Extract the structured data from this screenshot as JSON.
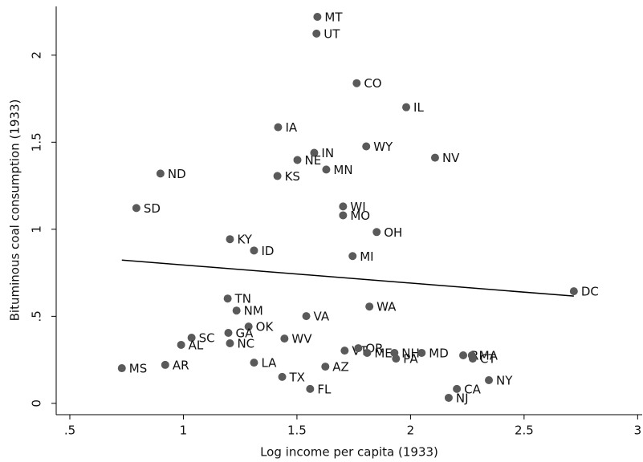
{
  "chart_data": {
    "type": "scatter",
    "x_label": "Log income per capita (1933)",
    "y_label": "Bituminous coal consumption (1933)",
    "color": "#5a5a5a",
    "labels": [
      "MT",
      "UT",
      "CO",
      "IL",
      "IA",
      "WY",
      "NV",
      "IN",
      "NE",
      "MN",
      "KS",
      "ND",
      "SD",
      "WI",
      "MO",
      "OH",
      "KY",
      "ID",
      "MI",
      "DC",
      "TN",
      "NM",
      "WA",
      "VA",
      "OK",
      "GA",
      "WV",
      "SC",
      "NC",
      "AL",
      "VT",
      "OR",
      "ME",
      "NH",
      "MD",
      "PA",
      "RI",
      "MA",
      "CT",
      "NY",
      "CA",
      "NJ",
      "MS",
      "AR",
      "LA",
      "TX",
      "AZ",
      "FL"
    ],
    "x": [
      1.59,
      1.586,
      1.763,
      1.981,
      1.417,
      1.805,
      2.108,
      1.576,
      1.502,
      1.629,
      1.414,
      0.899,
      0.793,
      1.703,
      1.703,
      1.851,
      1.205,
      1.311,
      1.745,
      2.719,
      1.195,
      1.234,
      1.819,
      1.541,
      1.287,
      1.198,
      1.445,
      1.036,
      1.205,
      0.99,
      1.71,
      1.77,
      1.809,
      1.929,
      2.049,
      1.936,
      2.232,
      2.27,
      2.274,
      2.345,
      2.204,
      2.168,
      0.729,
      0.92,
      1.311,
      1.435,
      1.625,
      1.558
    ],
    "values": [
      2.22,
      2.124,
      1.839,
      1.701,
      1.586,
      1.476,
      1.411,
      1.439,
      1.398,
      1.343,
      1.306,
      1.32,
      1.122,
      1.131,
      1.08,
      0.984,
      0.943,
      0.878,
      0.846,
      0.644,
      0.602,
      0.533,
      0.556,
      0.501,
      0.441,
      0.405,
      0.372,
      0.377,
      0.345,
      0.336,
      0.303,
      0.317,
      0.29,
      0.29,
      0.29,
      0.257,
      0.276,
      0.276,
      0.257,
      0.133,
      0.083,
      0.032,
      0.202,
      0.221,
      0.234,
      0.152,
      0.211,
      0.083
    ],
    "fit_line": {
      "x": [
        0.729,
        2.719
      ],
      "values": [
        0.823,
        0.616
      ],
      "color": "#000000"
    },
    "xlim": [
      0.44,
      3.02
    ],
    "ylim": [
      -0.065,
      2.28
    ],
    "xticks": [
      {
        "value": 0.5,
        "label": ".5"
      },
      1,
      1.5,
      2,
      2.5,
      3
    ],
    "yticks": [
      0,
      {
        "value": 0.5,
        "label": ".5"
      },
      1,
      1.5,
      2
    ]
  }
}
